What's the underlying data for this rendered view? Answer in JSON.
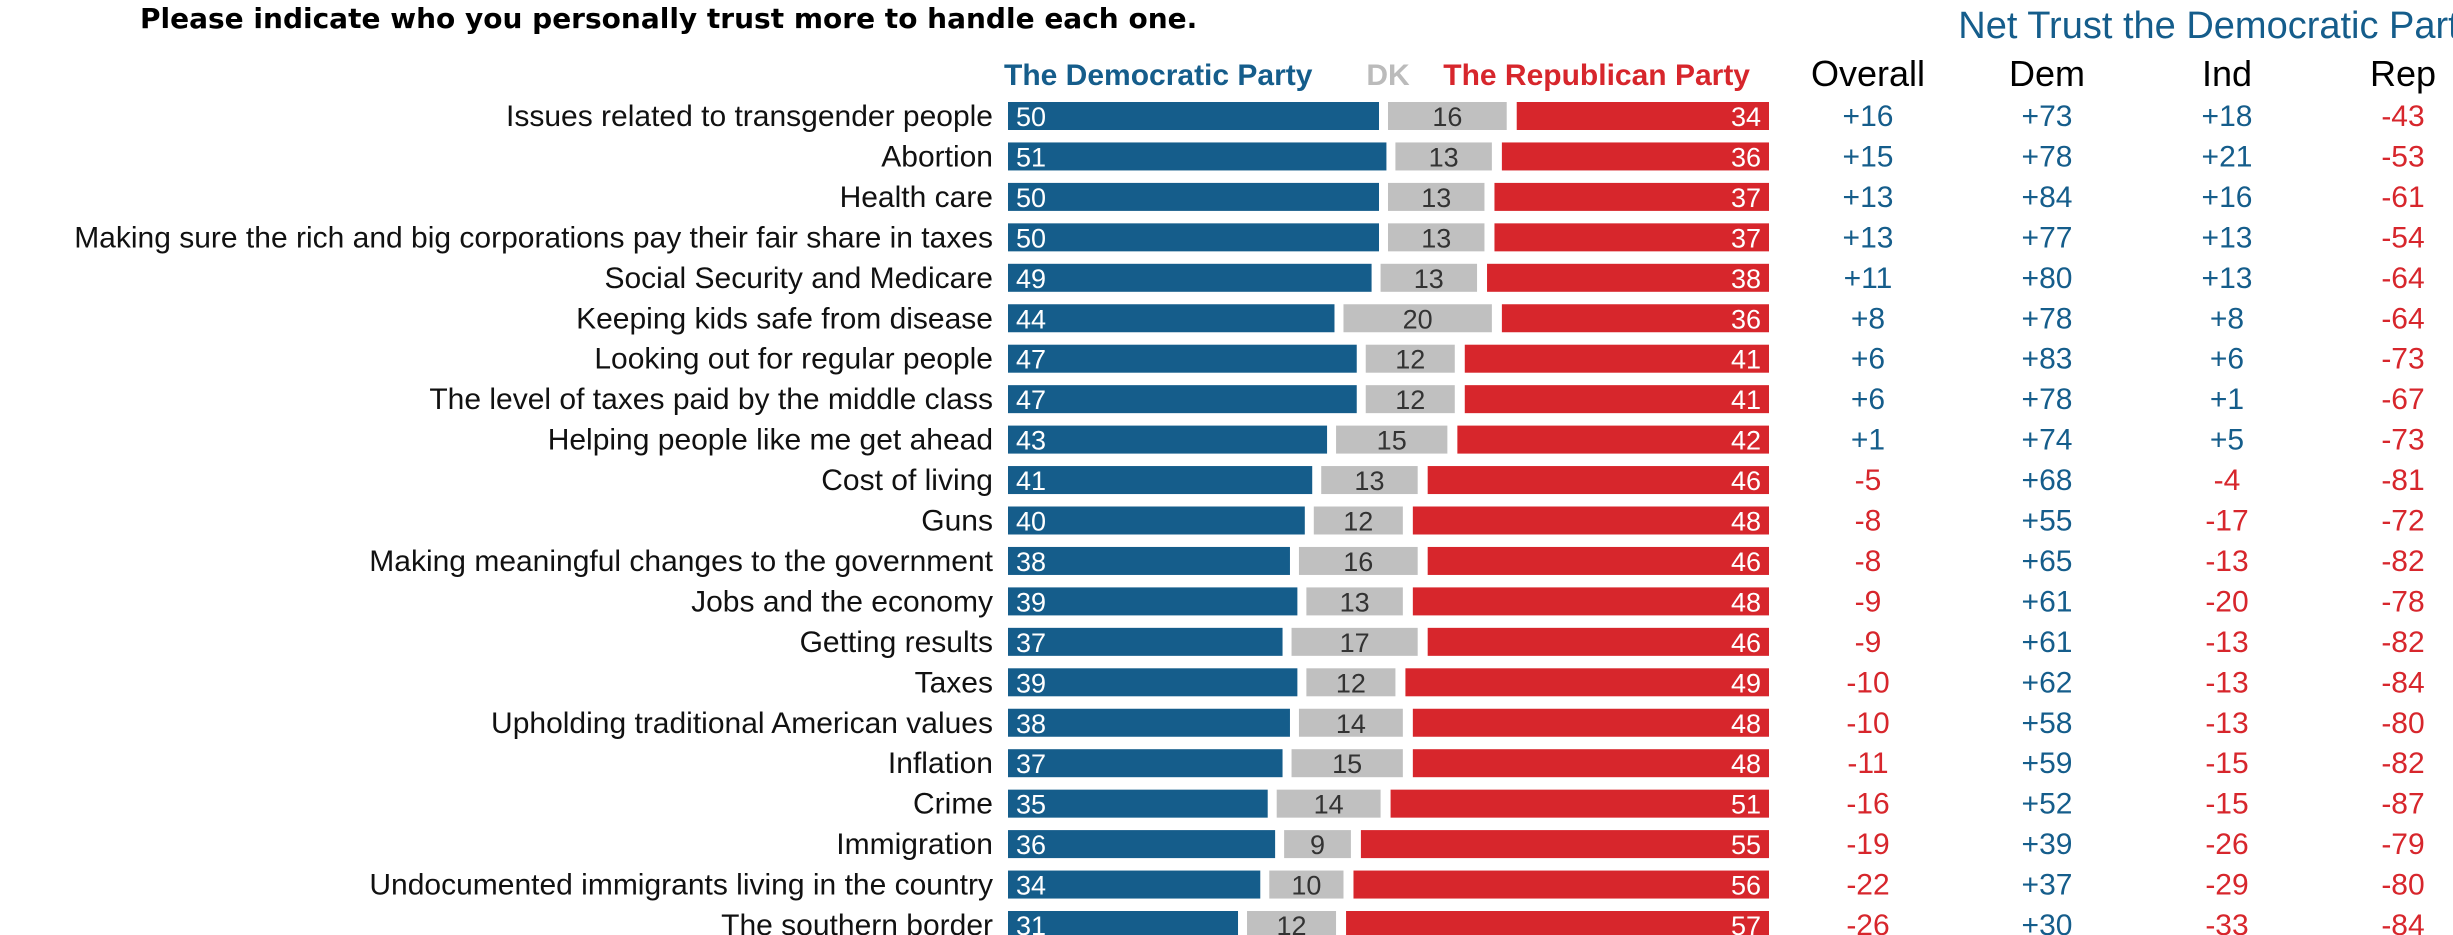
{
  "question": "Please indicate who you personally trust more to handle each one.",
  "colors": {
    "democratic": "#155d8b",
    "dk": "#c0c0c0",
    "republican": "#d7262c",
    "dk_label": "#bbbbbb",
    "dk_value_text": "#333333",
    "positive": "#155d8b",
    "negative": "#d7262c"
  },
  "legend": {
    "democratic": "The Democratic Party",
    "dk": "DK",
    "republican": "The Republican Party"
  },
  "net_trust": {
    "title": "Net Trust the Democratic Party",
    "columns": [
      "Overall",
      "Dem",
      "Ind",
      "Rep"
    ]
  },
  "chart_data": {
    "type": "bar",
    "stacked": true,
    "orientation": "horizontal",
    "categories": [
      "Issues related to transgender people",
      "Abortion",
      "Health care",
      "Making sure the rich and big corporations pay their fair share in taxes",
      "Social Security and Medicare",
      "Keeping kids safe from disease",
      "Looking out for regular people",
      "The level of taxes paid by the middle class",
      "Helping people like me get ahead",
      "Cost of living",
      "Guns",
      "Making meaningful changes to the government",
      "Jobs and the economy",
      "Getting results",
      "Taxes",
      "Upholding traditional American values",
      "Inflation",
      "Crime",
      "Immigration",
      "Undocumented immigrants living in the country",
      "The southern border"
    ],
    "series": [
      {
        "name": "The Democratic Party",
        "values": [
          50,
          51,
          50,
          50,
          49,
          44,
          47,
          47,
          43,
          41,
          40,
          38,
          39,
          37,
          39,
          38,
          37,
          35,
          36,
          34,
          31
        ]
      },
      {
        "name": "DK",
        "values": [
          16,
          13,
          13,
          13,
          13,
          20,
          12,
          12,
          15,
          13,
          12,
          16,
          13,
          17,
          12,
          14,
          15,
          14,
          9,
          10,
          12
        ]
      },
      {
        "name": "The Republican Party",
        "values": [
          34,
          36,
          37,
          37,
          38,
          36,
          41,
          41,
          42,
          46,
          48,
          46,
          48,
          46,
          49,
          48,
          48,
          51,
          55,
          56,
          57
        ]
      }
    ],
    "net": {
      "Overall": [
        "+16",
        "+15",
        "+13",
        "+13",
        "+11",
        "+8",
        "+6",
        "+6",
        "+1",
        "-5",
        "-8",
        "-8",
        "-9",
        "-9",
        "-10",
        "-10",
        "-11",
        "-16",
        "-19",
        "-22",
        "-26"
      ],
      "Dem": [
        "+73",
        "+78",
        "+84",
        "+77",
        "+80",
        "+78",
        "+83",
        "+78",
        "+74",
        "+68",
        "+55",
        "+65",
        "+61",
        "+61",
        "+62",
        "+58",
        "+59",
        "+52",
        "+39",
        "+37",
        "+30"
      ],
      "Ind": [
        "+18",
        "+21",
        "+16",
        "+13",
        "+13",
        "+8",
        "+6",
        "+1",
        "+5",
        "-4",
        "-17",
        "-13",
        "-20",
        "-13",
        "-13",
        "-13",
        "-15",
        "-15",
        "-26",
        "-29",
        "-33"
      ],
      "Rep": [
        "-43",
        "-53",
        "-61",
        "-54",
        "-64",
        "-64",
        "-73",
        "-67",
        "-73",
        "-81",
        "-72",
        "-82",
        "-78",
        "-82",
        "-84",
        "-80",
        "-82",
        "-87",
        "-79",
        "-80",
        "-84"
      ]
    },
    "xlim": [
      0,
      100
    ]
  }
}
